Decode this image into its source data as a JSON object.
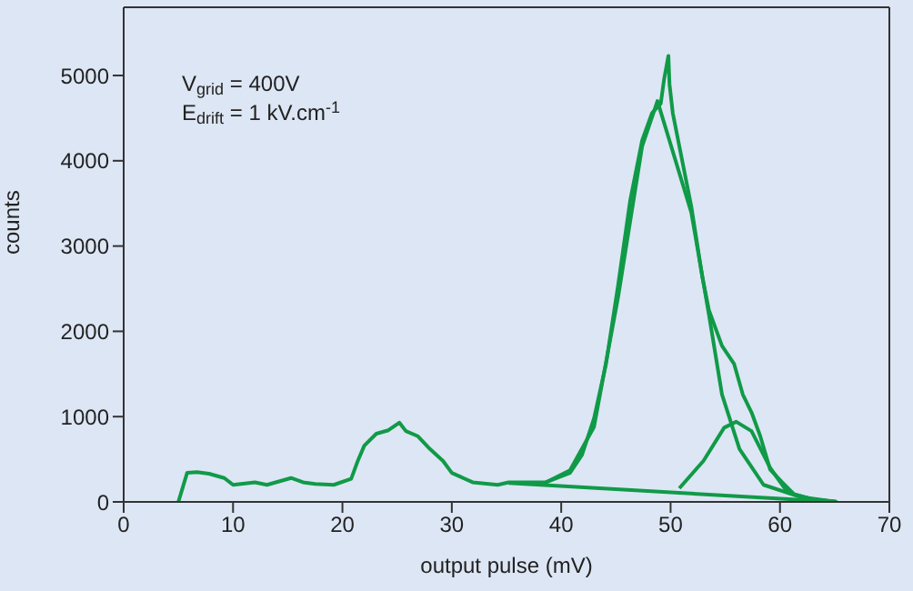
{
  "chart_data": {
    "type": "line",
    "xlabel": "output pulse (mV)",
    "ylabel": "counts",
    "annotations": [
      "V$_{grid}$ = 400V",
      "E$_{drift}$ = 1 kV.cm$^{-1}$"
    ],
    "xlim": [
      0,
      70
    ],
    "xticks": [
      0,
      10,
      20,
      30,
      40,
      50,
      60,
      70
    ],
    "ylim": [
      0,
      5800
    ],
    "yticks": [
      0,
      1000,
      2000,
      3000,
      4000,
      5000
    ],
    "legend": false,
    "marker": "none",
    "line_style": "solid",
    "series": [
      {
        "color": "#109a48",
        "x": [
          5.0,
          5.8,
          6.7,
          7.8,
          9.2,
          10.0,
          12.0,
          13.1,
          15.3,
          16.4,
          17.5,
          19.2,
          20.8,
          21.4,
          22.0,
          23.1,
          24.2,
          25.2,
          25.8,
          26.9,
          28.0,
          29.2,
          30.0,
          31.9,
          34.2,
          35.2,
          38.6,
          40.8,
          41.9,
          43.0,
          44.1,
          45.2,
          46.3,
          47.4,
          48.3,
          49.1,
          49.4,
          49.8,
          49.9,
          50.2,
          50.8,
          51.9,
          52.9,
          53.5,
          54.7,
          55.8,
          56.6,
          57.4,
          58.2,
          59.1,
          60.2,
          61.3,
          63.0,
          65.2
        ],
        "values": [
          0,
          340,
          350,
          330,
          280,
          200,
          230,
          200,
          280,
          230,
          210,
          200,
          270,
          480,
          660,
          800,
          840,
          930,
          830,
          770,
          620,
          480,
          340,
          230,
          200,
          230,
          230,
          340,
          550,
          980,
          1620,
          2540,
          3530,
          4240,
          4560,
          4670,
          4950,
          5230,
          4900,
          4560,
          4170,
          3460,
          2640,
          2250,
          1830,
          1620,
          1260,
          1050,
          770,
          380,
          230,
          90,
          30,
          0
        ]
      },
      {
        "color": "#109a48",
        "x": [
          38.6,
          40.8,
          43.0,
          45.2,
          47.4,
          48.8,
          51.9,
          53.5,
          54.7,
          56.3,
          58.5,
          61.8,
          65.2
        ],
        "values": [
          230,
          370,
          880,
          2400,
          4170,
          4700,
          3390,
          2200,
          1260,
          620,
          200,
          60,
          0
        ]
      },
      {
        "color": "#109a48",
        "x": [
          50.8,
          53.0,
          54.9,
          56.0,
          57.4,
          59.1,
          60.7,
          63.0,
          65.2
        ],
        "values": [
          160,
          480,
          870,
          940,
          830,
          400,
          110,
          30,
          0
        ]
      },
      {
        "color": "#109a48",
        "x": [
          35.2,
          65.2
        ],
        "values": [
          220,
          0
        ]
      }
    ]
  }
}
